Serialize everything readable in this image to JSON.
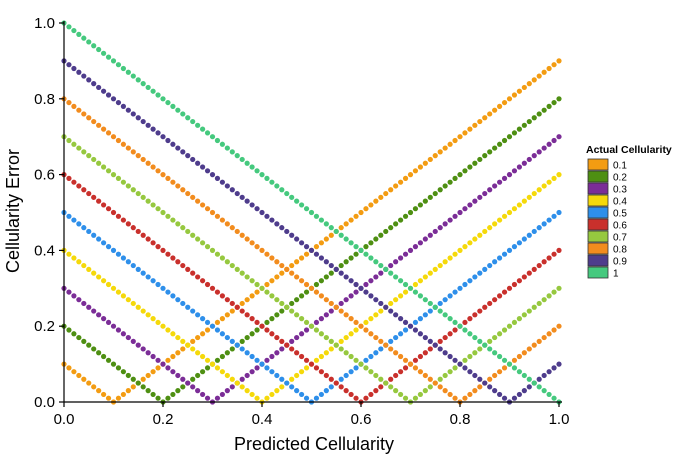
{
  "chart_data": {
    "type": "scatter",
    "xlabel": "Predicted Cellularity",
    "ylabel": "Cellularity Error",
    "xlim": [
      0,
      1
    ],
    "ylim": [
      0,
      1
    ],
    "x_ticks": [
      "0.0",
      "0.2",
      "0.4",
      "0.6",
      "0.8",
      "1.0"
    ],
    "y_ticks": [
      "0.0",
      "0.2",
      "0.4",
      "0.6",
      "0.8",
      "1.0"
    ],
    "grid": false,
    "legend": {
      "title": "Actual Cellularity",
      "placement": "right"
    },
    "point_relation": "error = |predicted - actual|, predicted sampled 0.00 to 1.00 in steps of 0.01",
    "series": [
      {
        "name": "0.1",
        "actual": 0.1,
        "color": "#F39C12"
      },
      {
        "name": "0.2",
        "actual": 0.2,
        "color": "#4E8F12"
      },
      {
        "name": "0.3",
        "actual": 0.3,
        "color": "#7B2D97"
      },
      {
        "name": "0.4",
        "actual": 0.4,
        "color": "#F5D90A"
      },
      {
        "name": "0.5",
        "actual": 0.5,
        "color": "#2E8FEA"
      },
      {
        "name": "0.6",
        "actual": 0.6,
        "color": "#C9302C"
      },
      {
        "name": "0.7",
        "actual": 0.7,
        "color": "#96C83F"
      },
      {
        "name": "0.8",
        "actual": 0.8,
        "color": "#F28C1E"
      },
      {
        "name": "0.9",
        "actual": 0.9,
        "color": "#4E3C8C"
      },
      {
        "name": "1",
        "actual": 1.0,
        "color": "#45C97E"
      }
    ]
  }
}
